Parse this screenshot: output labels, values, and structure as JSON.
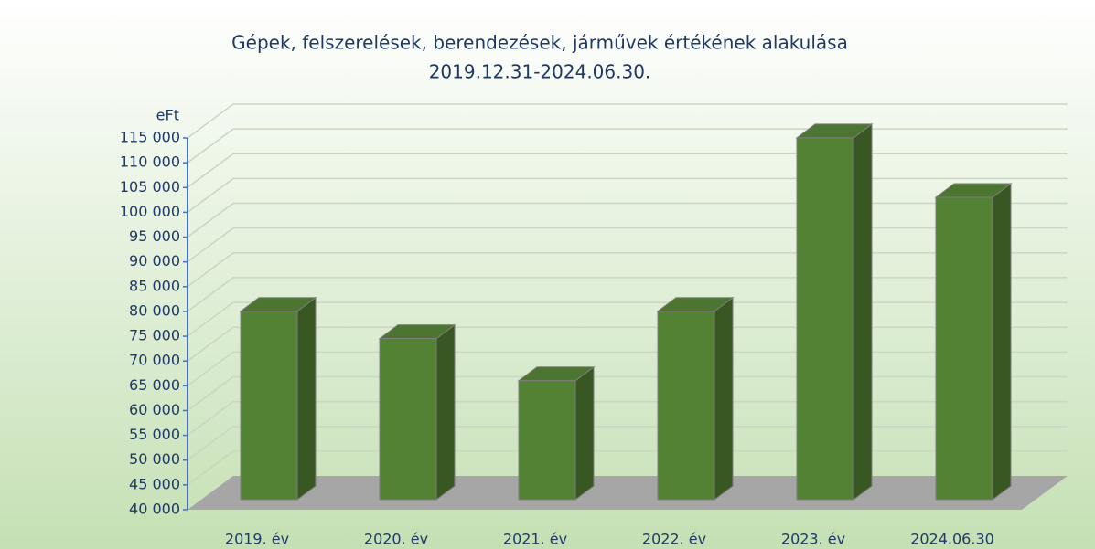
{
  "chart_data": {
    "type": "bar3d",
    "title": "Gépek, felszerelések, berendezések, járművek értékének alakulása",
    "subtitle": "2019.12.31-2024.06.30.",
    "y_label": "eFt",
    "categories": [
      "2019. év",
      "2020. év",
      "2021. év",
      "2022. év",
      "2023. év",
      "2024.06.30"
    ],
    "values": [
      78000,
      72500,
      64000,
      78000,
      113000,
      101000
    ],
    "color": "#548235",
    "ylim": [
      40000,
      115000
    ],
    "yticks": [
      {
        "value": 40000,
        "label": "40 000"
      },
      {
        "value": 45000,
        "label": "45 000"
      },
      {
        "value": 50000,
        "label": "50 000"
      },
      {
        "value": 55000,
        "label": "55 000"
      },
      {
        "value": 60000,
        "label": "60 000"
      },
      {
        "value": 65000,
        "label": "65 000"
      },
      {
        "value": 70000,
        "label": "70 000"
      },
      {
        "value": 75000,
        "label": "75 000"
      },
      {
        "value": 80000,
        "label": "80 000"
      },
      {
        "value": 85000,
        "label": "85 000"
      },
      {
        "value": 90000,
        "label": "90 000"
      },
      {
        "value": 95000,
        "label": "95 000"
      },
      {
        "value": 100000,
        "label": "100 000"
      },
      {
        "value": 105000,
        "label": "105 000"
      },
      {
        "value": 110000,
        "label": "110 000"
      },
      {
        "value": 115000,
        "label": "115 000"
      }
    ],
    "grid": true
  }
}
